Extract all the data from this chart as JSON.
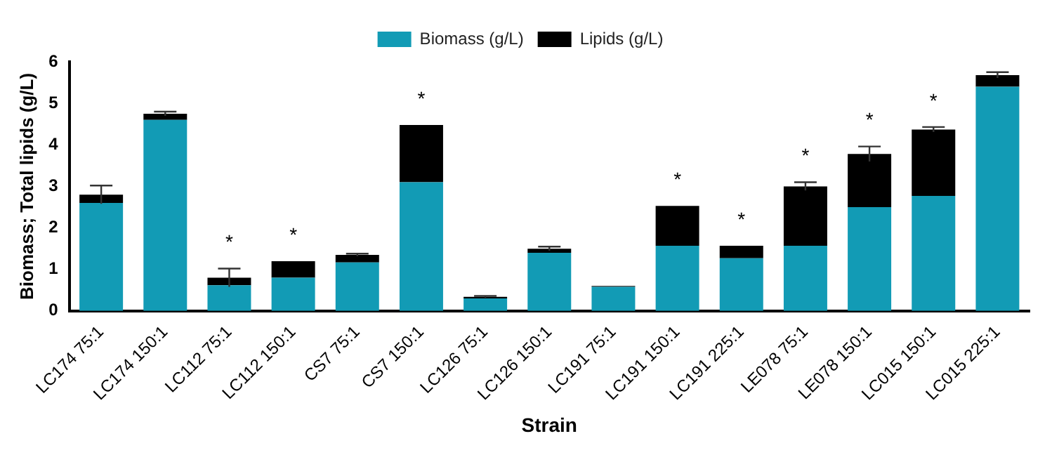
{
  "chart_data": {
    "type": "bar",
    "stacked": true,
    "xlabel": "Strain",
    "ylabel": "Biomass; Total lipids (g/L)",
    "categories": [
      "LC174 75:1",
      "LC174 150:1",
      "LC112 75:1",
      "LC112 150:1",
      "CS7 75:1",
      "CS7 150:1",
      "LC126 75:1",
      "LC126 150:1",
      "LC191 75:1",
      "LC191 150:1",
      "LC191 225:1",
      "LE078 75:1",
      "LE078 150:1",
      "LC015 150:1",
      "LC015 225:1"
    ],
    "series": [
      {
        "name": "Biomass (g/L)",
        "color": "#129bb5",
        "values": [
          2.6,
          4.6,
          0.62,
          0.8,
          1.17,
          3.1,
          0.3,
          1.4,
          0.58,
          1.57,
          1.27,
          1.57,
          2.5,
          2.77,
          5.4
        ]
      },
      {
        "name": "Lipids (g/L)",
        "color": "#000000",
        "values": [
          0.2,
          0.15,
          0.18,
          0.4,
          0.18,
          1.38,
          0.04,
          0.1,
          0.02,
          0.96,
          0.3,
          1.43,
          1.28,
          1.6,
          0.28
        ],
        "errors": [
          0.22,
          0.05,
          0.22,
          null,
          0.03,
          null,
          0.02,
          0.05,
          null,
          null,
          null,
          0.1,
          0.18,
          0.06,
          0.07
        ]
      }
    ],
    "ylim": [
      0,
      6
    ],
    "yticks": [
      0,
      1,
      2,
      3,
      4,
      5,
      6
    ],
    "grid": false,
    "legend": "top",
    "annotations": [
      {
        "text": "*",
        "x": "LC112 75:1",
        "y": 0.8
      },
      {
        "text": "*",
        "x": "LC112 150:1",
        "y": 1.2
      },
      {
        "text": "*",
        "x": "CS7 150:1",
        "y": 4.48
      },
      {
        "text": "*",
        "x": "LC191 150:1",
        "y": 2.53
      },
      {
        "text": "*",
        "x": "LC191 225:1",
        "y": 1.57
      },
      {
        "text": "*",
        "x": "LE078 75:1",
        "y": 3.0
      },
      {
        "text": "*",
        "x": "LE078 150:1",
        "y": 3.78
      },
      {
        "text": "*",
        "x": "LC015 150:1",
        "y": 4.37
      }
    ]
  }
}
